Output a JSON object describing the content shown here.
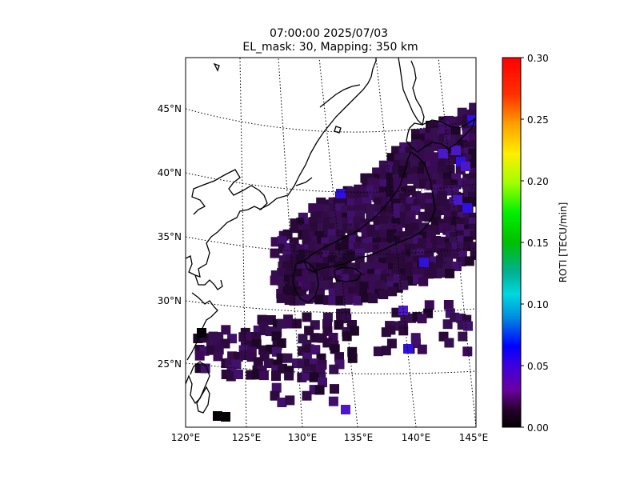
{
  "title_line1": "07:00:00 2025/07/03",
  "title_line2": "EL_mask: 30, Mapping: 350 km",
  "colorbar": {
    "label": "ROTI [TECU/min]",
    "min": 0.0,
    "max": 0.3,
    "ticks": [
      "0.00",
      "0.05",
      "0.10",
      "0.15",
      "0.20",
      "0.25",
      "0.30"
    ],
    "colormap": "nipy_spectral-like"
  },
  "map": {
    "projection": "conic",
    "lon_range": [
      120,
      145
    ],
    "lat_range": [
      20,
      49
    ],
    "lon_ticks": [
      "120°E",
      "125°E",
      "130°E",
      "135°E",
      "140°E",
      "145°E"
    ],
    "lat_ticks": [
      "25°N",
      "30°N",
      "35°N",
      "40°N",
      "45°N"
    ],
    "gridlines": "dotted",
    "coastlines": true
  },
  "chart_data": {
    "type": "heatmap",
    "title": "07:00:00 2025/07/03 EL_mask: 30, Mapping: 350 km",
    "value_label": "ROTI [TECU/min]",
    "value_range": [
      0.0,
      0.3
    ],
    "description_of_values": "Gridded ROTI over Japan; most cells 0.01–0.04, a few 0.04–0.06 near NE Hokkaido / off Sanriku",
    "hotspots": [
      {
        "lon": 144.5,
        "lat": 43.5,
        "roti": 0.055
      },
      {
        "lon": 143.0,
        "lat": 41.0,
        "roti": 0.05
      },
      {
        "lon": 142.5,
        "lat": 37.5,
        "roti": 0.045
      },
      {
        "lon": 138.8,
        "lat": 26.8,
        "roti": 0.045
      },
      {
        "lon": 133.0,
        "lat": 21.5,
        "roti": 0.045
      },
      {
        "lon": 122.5,
        "lat": 21.0,
        "roti": 0.0
      }
    ]
  }
}
